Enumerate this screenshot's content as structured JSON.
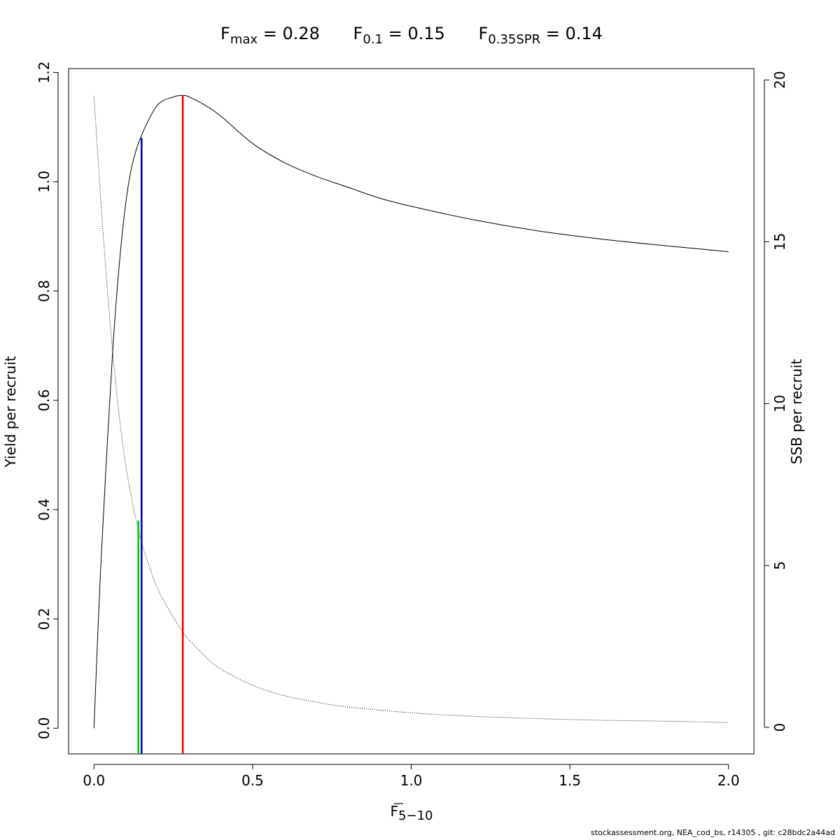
{
  "chart_data": {
    "type": "line",
    "title": {
      "fmax": {
        "sym": "F",
        "sub": "max",
        "eq": " = ",
        "value": "0.28"
      },
      "f01": {
        "sym": "F",
        "sub": "0.1",
        "eq": " = ",
        "value": "0.15"
      },
      "f35": {
        "sym": "F",
        "sub": "0.35SPR",
        "eq": " = ",
        "value": "0.14"
      }
    },
    "xlabel": {
      "sym": "F",
      "sub": "5−10"
    },
    "ylabel_left": "Yield per recruit",
    "ylabel_right": "SSB per recruit",
    "xlim": [
      -0.08,
      2.08
    ],
    "ylim_left": [
      -0.047,
      1.207
    ],
    "ylim_right": [
      -0.82,
      20.35
    ],
    "x_ticks": [
      "0.0",
      "0.5",
      "1.0",
      "1.5",
      "2.0"
    ],
    "y_left_ticks": [
      "0.0",
      "0.2",
      "0.4",
      "0.6",
      "0.8",
      "1.0",
      "1.2"
    ],
    "y_right_ticks": [
      "0",
      "5",
      "10",
      "15",
      "20"
    ],
    "grid": false,
    "series": [
      {
        "role": "yield",
        "axis": "left",
        "style": "solid",
        "color": "#000000",
        "x": [
          0.0,
          0.02,
          0.04,
          0.06,
          0.08,
          0.1,
          0.12,
          0.15,
          0.2,
          0.25,
          0.28,
          0.3,
          0.35,
          0.4,
          0.5,
          0.6,
          0.7,
          0.8,
          0.9,
          1.0,
          1.2,
          1.4,
          1.6,
          1.8,
          2.0
        ],
        "y": [
          0.0,
          0.28,
          0.5,
          0.7,
          0.85,
          0.96,
          1.03,
          1.085,
          1.14,
          1.155,
          1.158,
          1.155,
          1.14,
          1.12,
          1.07,
          1.035,
          1.01,
          0.99,
          0.97,
          0.955,
          0.93,
          0.91,
          0.895,
          0.883,
          0.872
        ]
      },
      {
        "role": "ssb",
        "axis": "right",
        "style": "dotted",
        "color": "#000000",
        "x": [
          0.0,
          0.02,
          0.04,
          0.06,
          0.08,
          0.1,
          0.12,
          0.14,
          0.16,
          0.2,
          0.25,
          0.28,
          0.3,
          0.35,
          0.4,
          0.5,
          0.6,
          0.7,
          0.8,
          1.0,
          1.2,
          1.4,
          1.6,
          1.8,
          2.0
        ],
        "y": [
          19.5,
          16.5,
          13.8,
          11.5,
          9.6,
          8.1,
          7.0,
          6.1,
          5.4,
          4.3,
          3.4,
          2.95,
          2.7,
          2.2,
          1.8,
          1.3,
          0.98,
          0.78,
          0.63,
          0.45,
          0.34,
          0.27,
          0.22,
          0.19,
          0.15
        ]
      }
    ],
    "reference_lines": [
      {
        "role": "fmax",
        "x": 0.28,
        "y_top": 1.158,
        "axis": "left",
        "color": "#ff0000"
      },
      {
        "role": "f01",
        "x": 0.15,
        "y_top": 1.08,
        "axis": "left",
        "color": "#0000cc"
      },
      {
        "role": "f35spr",
        "x": 0.14,
        "y_top": 0.38,
        "axis": "left",
        "color": "#00cc00"
      }
    ]
  },
  "footer": "stockassessment.org, NEA_cod_bs, r14305 , git: c28bdc2a44ad"
}
